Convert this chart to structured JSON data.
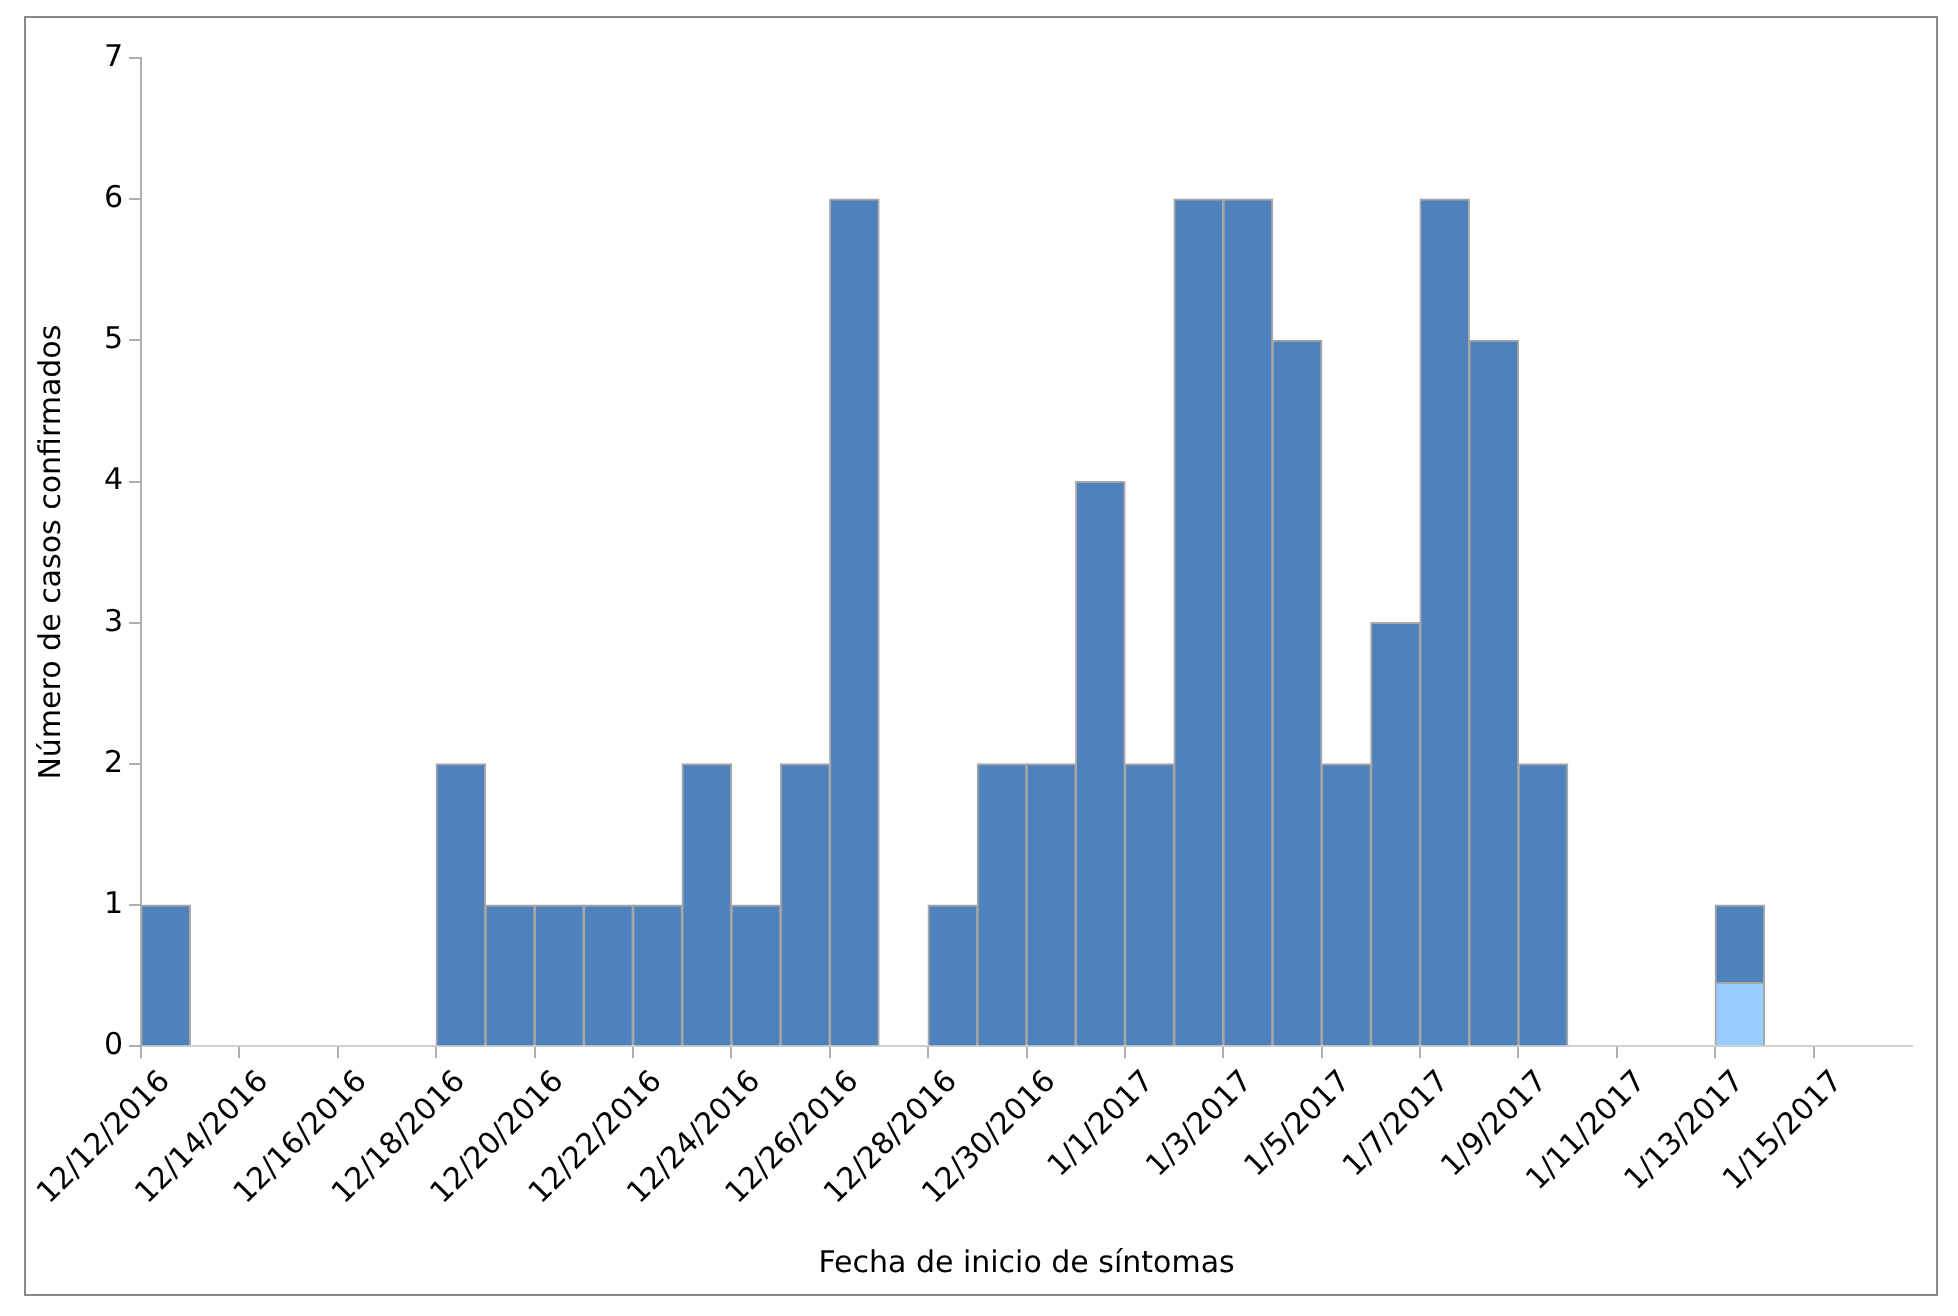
{
  "chart_data": {
    "type": "bar",
    "stacked": true,
    "xlabel": "Fecha de inicio de síntomas",
    "ylabel": "Número de casos confirmados",
    "categories": [
      "12/12/2016",
      null,
      "12/14/2016",
      null,
      "12/16/2016",
      null,
      "12/18/2016",
      null,
      "12/20/2016",
      null,
      "12/22/2016",
      null,
      "12/24/2016",
      null,
      "12/26/2016",
      null,
      "12/28/2016",
      null,
      "12/30/2016",
      null,
      "1/1/2017",
      null,
      "1/3/2017",
      null,
      "1/5/2017",
      null,
      "1/7/2017",
      null,
      "1/9/2017",
      null,
      "1/11/2017",
      null,
      "1/13/2017",
      null,
      "1/15/2017",
      null
    ],
    "series": [
      {
        "color": "#99ccff",
        "values": [
          0,
          0,
          0,
          0,
          0,
          0,
          0,
          0,
          0,
          0,
          0,
          0,
          0,
          0,
          0,
          0,
          0,
          0,
          0,
          0,
          0,
          0,
          0,
          0,
          0,
          0,
          0,
          0,
          0,
          0,
          0,
          0,
          0.45,
          0,
          0,
          0
        ]
      },
      {
        "color": "#4f81bd",
        "values": [
          1,
          0,
          0,
          0,
          0,
          0,
          2,
          1,
          1,
          1,
          1,
          2,
          1,
          2,
          6,
          0,
          1,
          2,
          2,
          4,
          2,
          6,
          6,
          5,
          2,
          3,
          6,
          5,
          2,
          0,
          0,
          0,
          0.55,
          0,
          0,
          0
        ]
      }
    ],
    "ylim": [
      0,
      7
    ],
    "yticks": [
      0,
      1,
      2,
      3,
      4,
      5,
      6,
      7
    ],
    "grid": false,
    "legend": false
  }
}
